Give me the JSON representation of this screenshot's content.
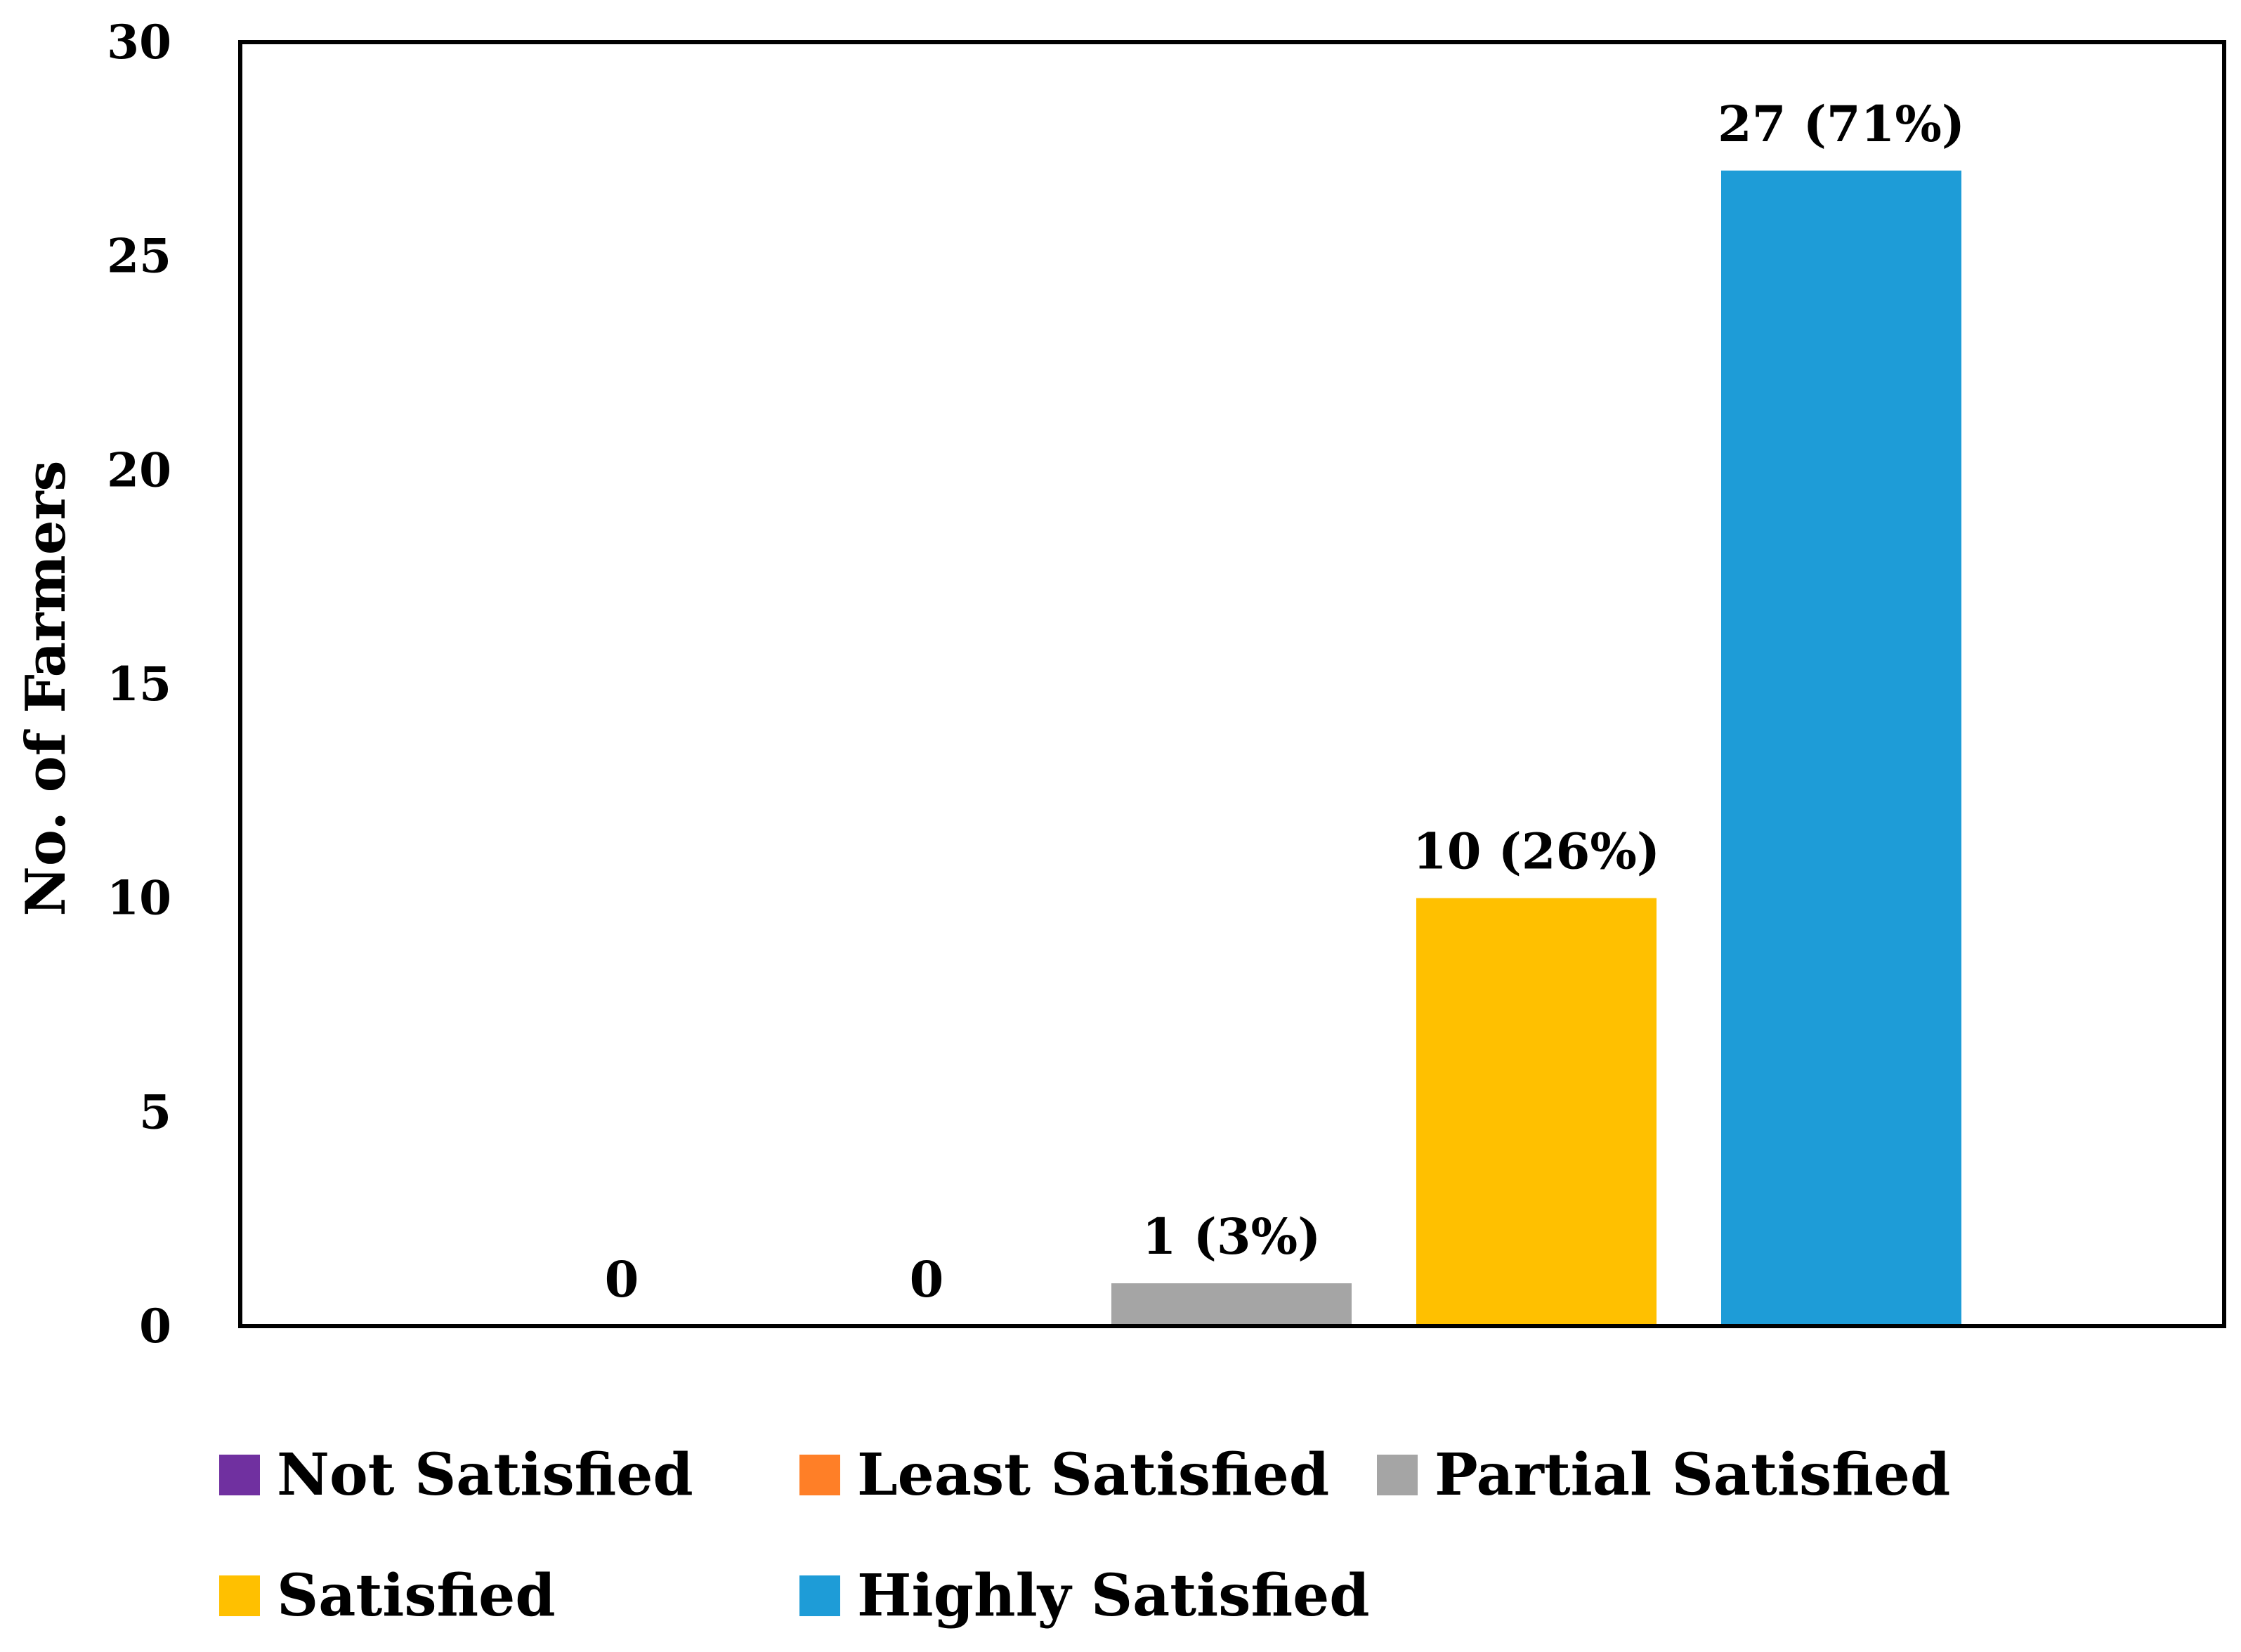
{
  "chart_data": {
    "type": "bar",
    "title": "",
    "xlabel": "",
    "ylabel": "No. of Farmers",
    "ylim": [
      0,
      30
    ],
    "yticks": [
      0,
      5,
      10,
      15,
      20,
      25,
      30
    ],
    "categories": [
      "Not Satisfied",
      "Least Satisfied",
      "Partial Satisfied",
      "Satisfied",
      "Highly Satisfied"
    ],
    "values": [
      0,
      0,
      1,
      10,
      27
    ],
    "data_labels": [
      "0",
      "0",
      "1 (3%)",
      "10 (26%)",
      "27 (71%)"
    ],
    "colors": [
      "#7030a0",
      "#ff7f27",
      "#a5a5a5",
      "#ffc000",
      "#1e9cd7"
    ],
    "grid": false,
    "legend": {
      "position": "bottom",
      "entries": [
        "Not Satisfied",
        "Least Satisfied",
        "Partial Satisfied",
        "Satisfied",
        "Highly Satisfied"
      ]
    }
  }
}
